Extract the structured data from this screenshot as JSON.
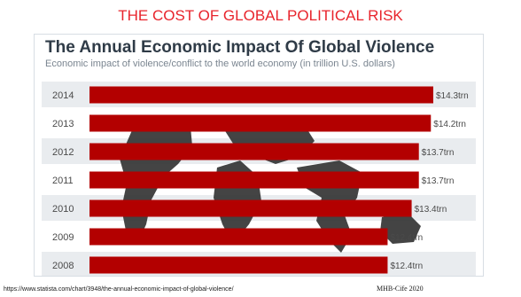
{
  "slide": {
    "title": "THE COST OF GLOBAL POLITICAL RISK",
    "source_url": "https://www.statista.com/chart/3948/the-annual-economic-impact-of-global-violence/",
    "credit": "MHB-Cife 2020"
  },
  "chart_data": {
    "type": "bar",
    "orientation": "horizontal",
    "title": "The Annual Economic Impact Of Global Violence",
    "subtitle": "Economic impact of violence/conflict to the world economy (in trillion U.S. dollars)",
    "categories": [
      "2014",
      "2013",
      "2012",
      "2011",
      "2010",
      "2009",
      "2008"
    ],
    "values": [
      14.3,
      14.2,
      13.7,
      13.7,
      13.4,
      12.4,
      12.4
    ],
    "data_labels": [
      "$14.3trn",
      "$14.2trn",
      "$13.7trn",
      "$13.7trn",
      "$13.4trn",
      "$12.4trn",
      "$12.4trn"
    ],
    "xlim": [
      0,
      14.3
    ],
    "grid": false,
    "legend": "none",
    "bar_color": "#b30000",
    "background_map_color": "#3a3a3a"
  }
}
